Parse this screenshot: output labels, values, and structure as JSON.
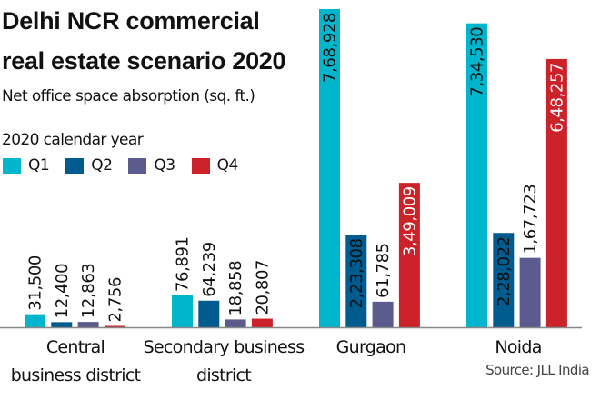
{
  "header": {
    "title_line1": "Delhi NCR commercial",
    "title_line2": "real estate scenario 2020",
    "subtitle": "Net office space absorption (sq. ft.)",
    "period": "2020 calendar year"
  },
  "source": "Source: JLL India",
  "colors": {
    "Q1": "#00b5cc",
    "Q2": "#005b8e",
    "Q3": "#5b5b8e",
    "Q4": "#cc2229",
    "axis": "#888888"
  },
  "chart_data": {
    "type": "bar",
    "title": "Delhi NCR commercial real estate scenario 2020",
    "subtitle": "Net office space absorption (sq. ft.)",
    "xlabel": "",
    "ylabel": "",
    "grid": false,
    "legend_position": "top-left",
    "ylim": [
      0,
      768928
    ],
    "categories": [
      [
        "Central",
        "business district"
      ],
      [
        "Secondary business",
        "district"
      ],
      [
        "Gurgaon"
      ],
      [
        "Noida"
      ]
    ],
    "series": [
      {
        "name": "Q1",
        "values": [
          31500,
          76891,
          768928,
          734530
        ],
        "labels": [
          "31,500",
          "76,891",
          "7,68,928",
          "7,34,530"
        ]
      },
      {
        "name": "Q2",
        "values": [
          12400,
          64239,
          223308,
          228022
        ],
        "labels": [
          "12,400",
          "64,239",
          "2,23,308",
          "2,28,022"
        ]
      },
      {
        "name": "Q3",
        "values": [
          12863,
          18858,
          61785,
          167723
        ],
        "labels": [
          "12,863",
          "18,858",
          "61,785",
          "1,67,723"
        ]
      },
      {
        "name": "Q4",
        "values": [
          2756,
          20807,
          349009,
          648257
        ],
        "labels": [
          "2,756",
          "20,807",
          "3,49,009",
          "6,48,257"
        ]
      }
    ]
  }
}
